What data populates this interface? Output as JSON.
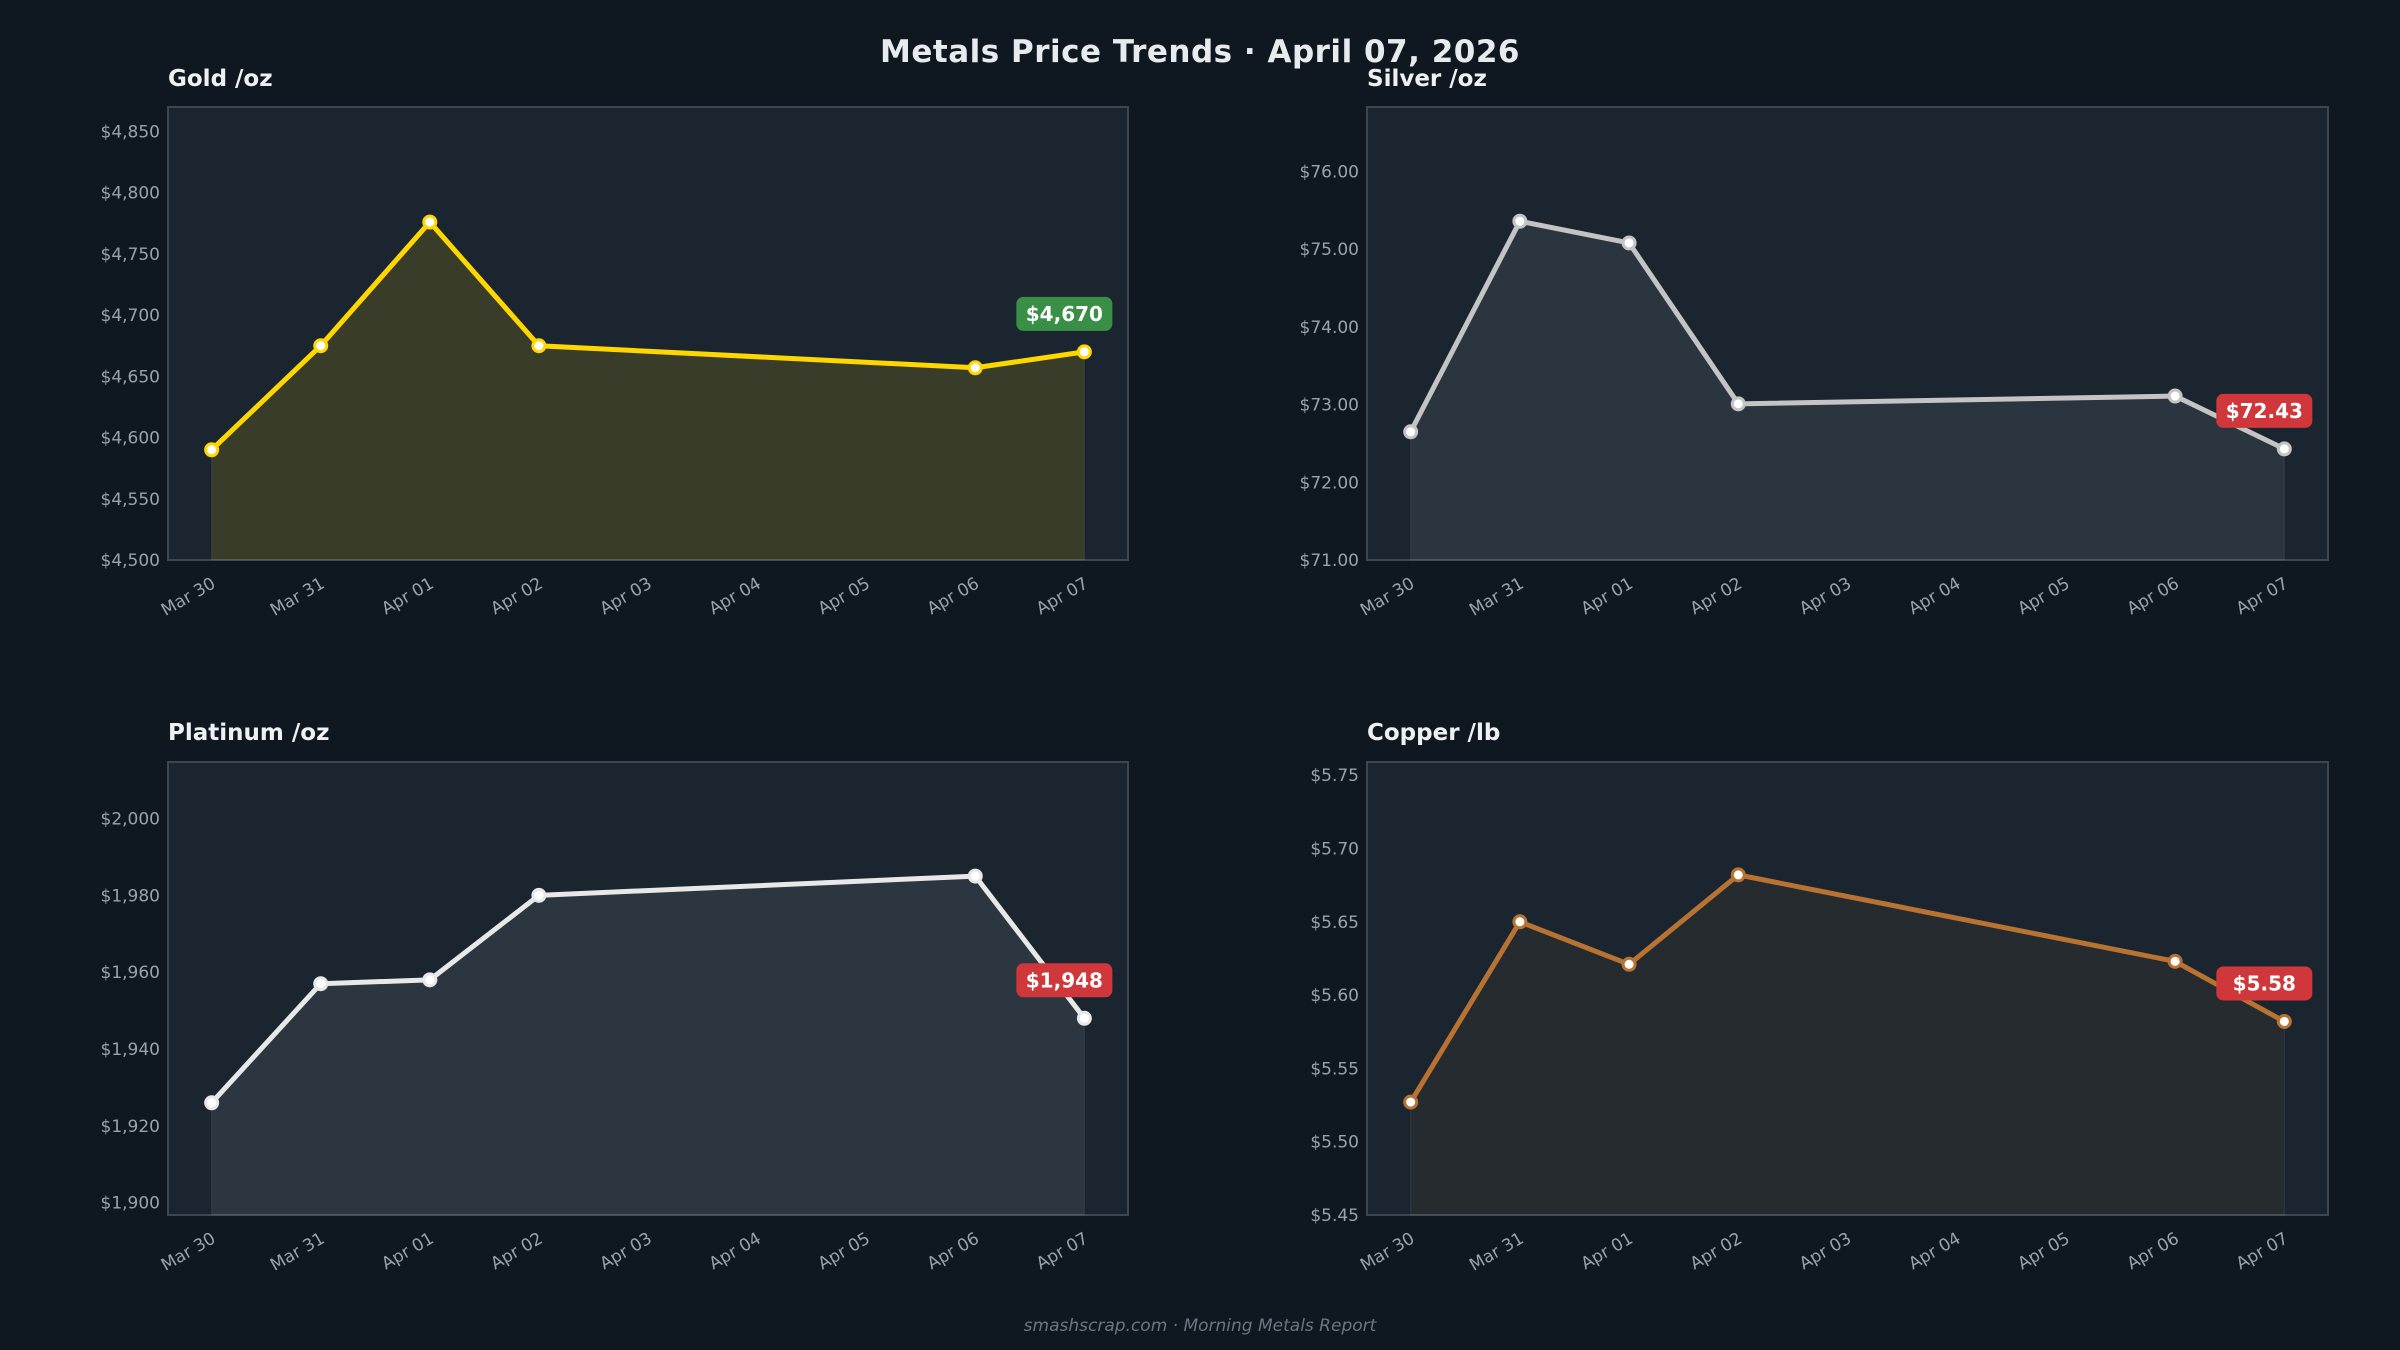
{
  "title": "Metals Price Trends  ·  April 07, 2026",
  "footer": "smashscrap.com  ·  Morning Metals Report",
  "chart_data": [
    {
      "type": "area",
      "title": "Gold  /oz",
      "x_labels": [
        "Mar 30",
        "Mar 31",
        "Apr 01",
        "Apr 02",
        "Apr 03",
        "Apr 04",
        "Apr 05",
        "Apr 06",
        "Apr 07"
      ],
      "x": [
        "Mar 30",
        "Mar 31",
        "Apr 01",
        "Apr 02",
        "Apr 06",
        "Apr 07"
      ],
      "values": [
        4590,
        4675,
        4776,
        4675,
        4657,
        4670
      ],
      "ylim": [
        4500,
        4870
      ],
      "yticks": [
        4500,
        4550,
        4600,
        4650,
        4700,
        4750,
        4800,
        4850
      ],
      "ytick_labels": [
        "$4,500",
        "$4,550",
        "$4,600",
        "$4,650",
        "$4,700",
        "$4,750",
        "$4,800",
        "$4,850"
      ],
      "last_label": "$4,670",
      "last_label_color": "#3a8f46",
      "line_color": "#ffd700",
      "fill_color": "rgba(255,215,0,0.13)",
      "grid": false
    },
    {
      "type": "area",
      "title": "Silver  /oz",
      "x_labels": [
        "Mar 30",
        "Mar 31",
        "Apr 01",
        "Apr 02",
        "Apr 03",
        "Apr 04",
        "Apr 05",
        "Apr 06",
        "Apr 07"
      ],
      "x": [
        "Mar 30",
        "Mar 31",
        "Apr 01",
        "Apr 02",
        "Apr 06",
        "Apr 07"
      ],
      "values": [
        72.65,
        75.36,
        75.08,
        73.01,
        73.11,
        72.43
      ],
      "ylim": [
        71,
        76.83
      ],
      "yticks": [
        71,
        72,
        73,
        74,
        75,
        76
      ],
      "ytick_labels": [
        "$71.00",
        "$72.00",
        "$73.00",
        "$74.00",
        "$75.00",
        "$76.00"
      ],
      "last_label": "$72.43",
      "last_label_color": "#d0373a",
      "line_color": "#c4c4c4",
      "fill_color": "rgba(190,200,210,0.10)",
      "grid": false
    },
    {
      "type": "area",
      "title": "Platinum  /oz",
      "x_labels": [
        "Mar 30",
        "Mar 31",
        "Apr 01",
        "Apr 02",
        "Apr 03",
        "Apr 04",
        "Apr 05",
        "Apr 06",
        "Apr 07"
      ],
      "x": [
        "Mar 30",
        "Mar 31",
        "Apr 01",
        "Apr 02",
        "Apr 06",
        "Apr 07"
      ],
      "values": [
        1926,
        1957,
        1958,
        1980,
        1985,
        1948
      ],
      "ylim": [
        1896.8,
        2014.7
      ],
      "yticks": [
        1900,
        1920,
        1940,
        1960,
        1980,
        2000
      ],
      "ytick_labels": [
        "$1,900",
        "$1,920",
        "$1,940",
        "$1,960",
        "$1,980",
        "$2,000"
      ],
      "last_label": "$1,948",
      "last_label_color": "#d0373a",
      "line_color": "#e8e8e8",
      "fill_color": "rgba(200,210,220,0.10)",
      "grid": false
    },
    {
      "type": "area",
      "title": "Copper  /lb",
      "x_labels": [
        "Mar 30",
        "Mar 31",
        "Apr 01",
        "Apr 02",
        "Apr 03",
        "Apr 04",
        "Apr 05",
        "Apr 06",
        "Apr 07"
      ],
      "x": [
        "Mar 30",
        "Mar 31",
        "Apr 01",
        "Apr 02",
        "Apr 06",
        "Apr 07"
      ],
      "values": [
        5.527,
        5.65,
        5.621,
        5.682,
        5.623,
        5.582
      ],
      "ylim": [
        5.45,
        5.759
      ],
      "yticks": [
        5.45,
        5.5,
        5.55,
        5.6,
        5.65,
        5.7,
        5.75
      ],
      "ytick_labels": [
        "$5.45",
        "$5.50",
        "$5.55",
        "$5.60",
        "$5.65",
        "$5.70",
        "$5.75"
      ],
      "last_label": "$5.58",
      "last_label_color": "#d0373a",
      "line_color": "#b87333",
      "fill_color": "rgba(184,115,51,0.08)",
      "grid": false
    }
  ]
}
